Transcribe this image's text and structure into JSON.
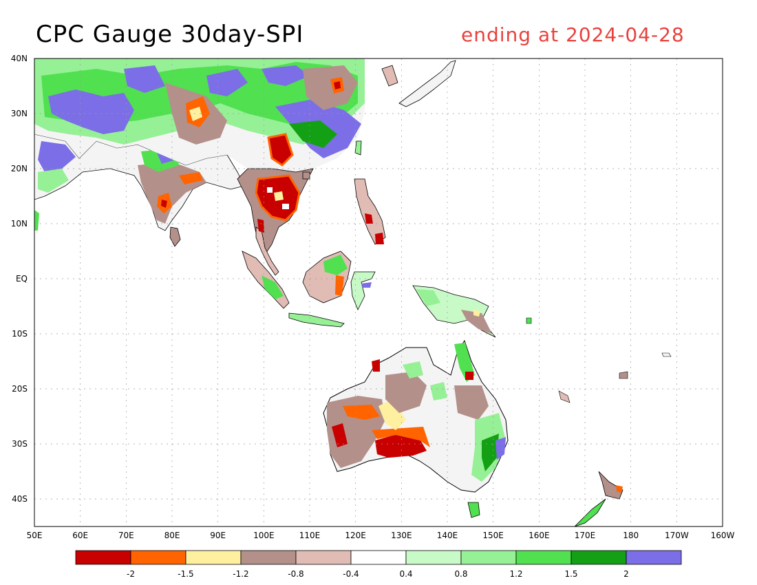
{
  "header": {
    "title": "CPC Gauge 30day-SPI",
    "ending": "ending at 2024-04-28"
  },
  "axes": {
    "lat_labels": [
      "40N",
      "30N",
      "20N",
      "10N",
      "EQ",
      "10S",
      "20S",
      "30S",
      "40S"
    ],
    "lon_labels": [
      "50E",
      "60E",
      "70E",
      "80E",
      "90E",
      "100E",
      "110E",
      "120E",
      "130E",
      "140E",
      "150E",
      "160E",
      "170E",
      "180",
      "170W",
      "160W"
    ]
  },
  "colorbar": {
    "colors": [
      "#c80000",
      "#ff6400",
      "#fff0a0",
      "#b4908a",
      "#e0bcb4",
      "#ffffff",
      "#c8fac8",
      "#96f096",
      "#50e050",
      "#14a014",
      "#7c6ee6"
    ],
    "labels": [
      "-2",
      "-1.5",
      "-1.2",
      "-0.8",
      "-0.4",
      "0.4",
      "0.8",
      "1.2",
      "1.5",
      "2"
    ]
  },
  "map_regions": {
    "names": [
      "south-asia",
      "indochina",
      "china",
      "maritime-se-asia",
      "new-guinea",
      "australia",
      "new-zealand",
      "japan"
    ]
  }
}
